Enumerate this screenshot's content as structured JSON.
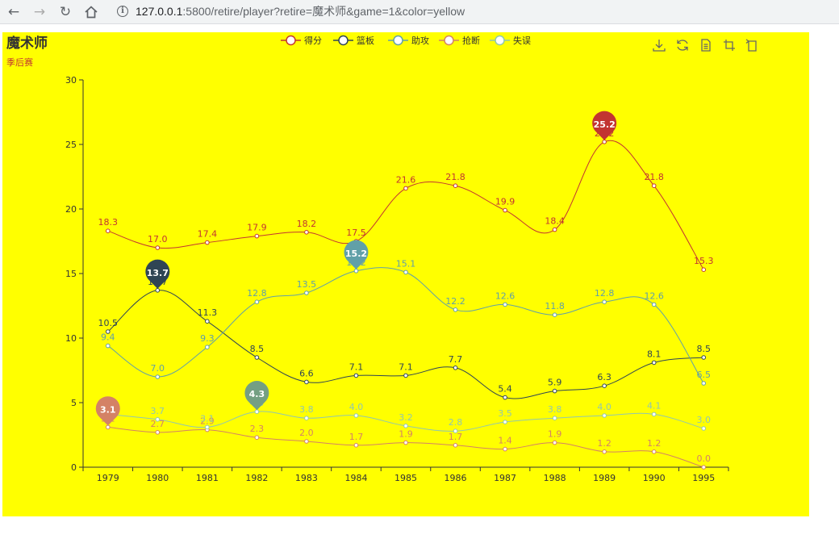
{
  "browser": {
    "url_host": "127.0.0.1",
    "url_rest": ":5800/retire/player?retire=魔术师&game=1&color=yellow",
    "back_icon": "arrow-left-icon",
    "forward_icon": "arrow-right-icon",
    "reload_icon": "reload-icon",
    "home_icon": "home-icon",
    "info_icon": "info-icon"
  },
  "colors": {
    "background": "#ffff00",
    "subtitle": "#c23531"
  },
  "toolbox": [
    "save-as-image-icon",
    "restore-icon",
    "data-view-icon",
    "zoom-icon",
    "zoom-reset-icon"
  ],
  "chart_data": {
    "type": "line",
    "title": "魔术师",
    "subtitle": "季后赛",
    "categories": [
      "1979",
      "1980",
      "1981",
      "1982",
      "1983",
      "1984",
      "1985",
      "1986",
      "1987",
      "1988",
      "1989",
      "1990",
      "1995"
    ],
    "ylim": [
      0,
      30
    ],
    "yticks": [
      0,
      5,
      10,
      15,
      20,
      25,
      30
    ],
    "smooth": true,
    "legend_position": "top-center",
    "series": [
      {
        "name": "得分",
        "color": "#c23531",
        "values": [
          18.3,
          17.0,
          17.4,
          17.9,
          18.2,
          17.5,
          21.6,
          21.8,
          19.9,
          18.4,
          25.2,
          21.8,
          15.3
        ],
        "max_marker": {
          "index": 10,
          "value": 25.2,
          "color": "#c23531"
        }
      },
      {
        "name": "篮板",
        "color": "#2f4554",
        "values": [
          10.5,
          13.7,
          11.3,
          8.5,
          6.6,
          7.1,
          7.1,
          7.7,
          5.4,
          5.9,
          6.3,
          8.1,
          8.5
        ],
        "max_marker": {
          "index": 1,
          "value": 13.7,
          "color": "#2f4554"
        }
      },
      {
        "name": "助攻",
        "color": "#61a0a8",
        "values": [
          9.4,
          7.0,
          9.3,
          12.8,
          13.5,
          15.2,
          15.1,
          12.2,
          12.6,
          11.8,
          12.8,
          12.6,
          6.5
        ],
        "max_marker": {
          "index": 5,
          "value": 15.2,
          "color": "#61a0a8"
        }
      },
      {
        "name": "抢断",
        "color": "#d48265",
        "values": [
          3.1,
          2.7,
          2.9,
          2.3,
          2.0,
          1.7,
          1.9,
          1.7,
          1.4,
          1.9,
          1.2,
          1.2,
          0.0
        ],
        "max_marker": {
          "index": 0,
          "value": 3.1,
          "color": "#d48265"
        }
      },
      {
        "name": "失误",
        "color": "#91c7ae",
        "values": [
          4.1,
          3.7,
          3.1,
          4.3,
          3.8,
          4.0,
          3.2,
          2.8,
          3.5,
          3.8,
          4.0,
          4.1,
          3.0
        ],
        "max_marker": {
          "index": 3,
          "value": 4.3,
          "color": "#749f83"
        }
      }
    ]
  }
}
